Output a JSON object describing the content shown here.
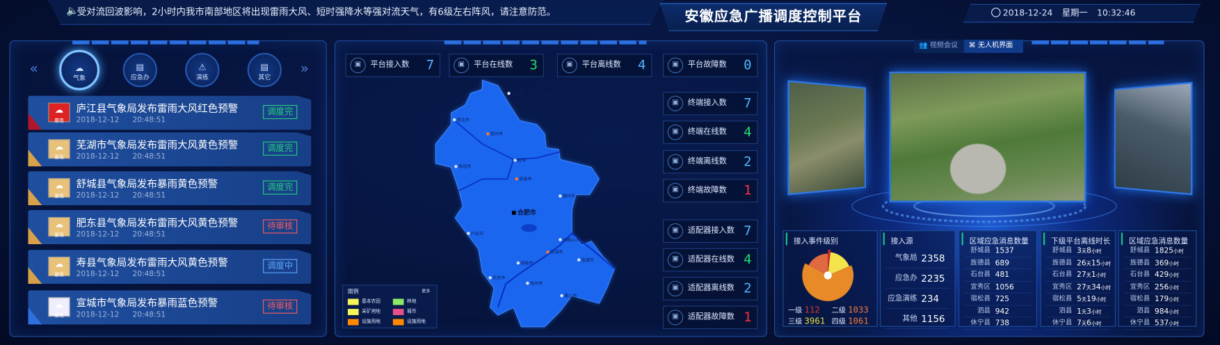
{
  "header": {
    "ticker_icon": "speaker-icon",
    "ticker": "受对流回波影响，2小时内我市南部地区将出现雷雨大风、短时强降水等强对流天气，有6级左右阵风，请注意防范。",
    "title": "安徽应急广播调度控制平台",
    "date": "2018-12-24",
    "weekday": "星期一",
    "time": "10:32:46"
  },
  "left": {
    "categories": [
      {
        "label": "气象",
        "icon": "cloud-icon",
        "active": true
      },
      {
        "label": "应急办",
        "icon": "id-card-icon"
      },
      {
        "label": "演练",
        "icon": "drill-icon"
      },
      {
        "label": "其它",
        "icon": "id-card-icon"
      }
    ],
    "alerts": [
      {
        "title": "庐江县气象局发布雷雨大风红色预警",
        "date": "2018-12-12",
        "time": "20:48:51",
        "status": "调度完",
        "level": "red",
        "badge": "暴雨"
      },
      {
        "title": "芜湖市气象局发布雷雨大风黄色预警",
        "date": "2018-12-12",
        "time": "20:48:51",
        "status": "调度完",
        "level": "yellow",
        "badge": "暴雨"
      },
      {
        "title": "舒城县气象局发布暴雨黄色预警",
        "date": "2018-12-12",
        "time": "20:48:51",
        "status": "调度完",
        "level": "yellow",
        "badge": "暴雨"
      },
      {
        "title": "肥东县气象局发布雷雨大风黄色预警",
        "date": "2018-12-12",
        "time": "20:48:51",
        "status": "待审核",
        "level": "yellow",
        "badge": "暴雨"
      },
      {
        "title": "寿县气象局发布雷雨大风黄色预警",
        "date": "2018-12-12",
        "time": "20:48:51",
        "status": "调度中",
        "level": "yellow",
        "badge": "暴雨"
      },
      {
        "title": "宣城市气象局发布暴雨蓝色预警",
        "date": "2018-12-12",
        "time": "20:48:51",
        "status": "待审核",
        "level": "blue",
        "badge": "暴雨"
      }
    ]
  },
  "colors": {
    "red": "#b0172b",
    "yellow": "#d9a24a",
    "blue": "#2f6fe0",
    "done": "#22d07a",
    "pending": "#ff5a5a",
    "running": "#5fa8ff"
  },
  "middle": {
    "top_stats": [
      {
        "label": "平台接入数",
        "value": "7",
        "color": "#4fb6ff"
      },
      {
        "label": "平台在线数",
        "value": "3",
        "color": "#22e06a"
      },
      {
        "label": "平台离线数",
        "value": "4",
        "color": "#4fb6ff"
      },
      {
        "label": "平台故障数",
        "value": "0",
        "color": "#4fb6ff"
      }
    ],
    "side_stats": [
      {
        "label": "终端接入数",
        "value": "7",
        "color": "#4fb6ff"
      },
      {
        "label": "终端在线数",
        "value": "4",
        "color": "#22e06a"
      },
      {
        "label": "终端离线数",
        "value": "2",
        "color": "#4fb6ff"
      },
      {
        "label": "终端故障数",
        "value": "1",
        "color": "#ff3040"
      },
      {
        "label": "适配器接入数",
        "value": "7",
        "color": "#4fb6ff"
      },
      {
        "label": "适配器在线数",
        "value": "4",
        "color": "#22e06a"
      },
      {
        "label": "适配器离线数",
        "value": "2",
        "color": "#4fb6ff"
      },
      {
        "label": "适配器故障数",
        "value": "1",
        "color": "#ff3040"
      }
    ],
    "map": {
      "capital": "合肥市",
      "cities": [
        "亳州市",
        "淮北市",
        "宿州市",
        "阜阳市",
        "蚌埠",
        "淮南市",
        "滁州市",
        "六安市",
        "马鞍山市",
        "芜湖市",
        "铜陵市",
        "宣城市",
        "安庆市",
        "池州市",
        "黄山市"
      ]
    },
    "legend": {
      "title": "图例",
      "more": "更多",
      "items": [
        {
          "label": "基本农田",
          "color": "#f5f55a"
        },
        {
          "label": "林地",
          "color": "#8ee86a"
        },
        {
          "label": "采矿用地",
          "color": "#f5f55a"
        },
        {
          "label": "城市",
          "color": "#e8508a"
        },
        {
          "label": "设施用地",
          "color": "#ff8a00"
        },
        {
          "label": "设施用地",
          "color": "#ff8a00"
        }
      ]
    }
  },
  "right": {
    "tabs": [
      {
        "label": "视频会议",
        "active": false
      },
      {
        "label": "无人机界面",
        "active": true
      }
    ],
    "event_level": {
      "title": "接入事件级别",
      "levels": [
        {
          "label": "一级",
          "value": 112,
          "color": "#e03030"
        },
        {
          "label": "二级",
          "value": 1033,
          "color": "#f07a3a"
        },
        {
          "label": "三级",
          "value": 3961,
          "color": "#e8e040"
        },
        {
          "label": "四级",
          "value": 1061,
          "color": "#f07a3a"
        }
      ],
      "slice_colors": [
        "#c8282a",
        "#f2e44a",
        "#e88a28",
        "#e06a40"
      ]
    },
    "source": {
      "title": "接入源",
      "rows": [
        {
          "label": "气象局",
          "value": "2358"
        },
        {
          "label": "应急办",
          "value": "2235"
        },
        {
          "label": "应急演练",
          "value": "234"
        },
        {
          "label": "其他",
          "value": "1156"
        }
      ]
    },
    "region_msgs": {
      "title": "区域应急消息数量",
      "rows": [
        {
          "name": "舒城县",
          "value": "1537"
        },
        {
          "name": "旌德县",
          "value": "689"
        },
        {
          "name": "石台县",
          "value": "481"
        },
        {
          "name": "宜秀区",
          "value": "1056"
        },
        {
          "name": "宿松县",
          "value": "725"
        },
        {
          "name": "泗县",
          "value": "942"
        },
        {
          "name": "休宁县",
          "value": "738"
        }
      ]
    },
    "offline": {
      "title": "下级平台离线时长",
      "day_unit": "天",
      "hour_unit": "小时",
      "rows": [
        {
          "name": "舒城县",
          "d": "3",
          "h": "8"
        },
        {
          "name": "旌德县",
          "d": "26",
          "h": "15"
        },
        {
          "name": "石台县",
          "d": "27",
          "h": "1"
        },
        {
          "name": "宜秀区",
          "d": "27",
          "h": "34"
        },
        {
          "name": "宿松县",
          "d": "5",
          "h": "19"
        },
        {
          "name": "泗县",
          "d": "1",
          "h": "3"
        },
        {
          "name": "休宁县",
          "d": "7",
          "h": "6"
        }
      ]
    },
    "region_msgs2": {
      "title": "区域应急消息数量",
      "unit": "小时",
      "rows": [
        {
          "name": "舒城县",
          "value": "1825"
        },
        {
          "name": "旌德县",
          "value": "369"
        },
        {
          "name": "石台县",
          "value": "429"
        },
        {
          "name": "宜秀区",
          "value": "256"
        },
        {
          "name": "宿松县",
          "value": "179"
        },
        {
          "name": "泗县",
          "value": "984"
        },
        {
          "name": "休宁县",
          "value": "537"
        }
      ]
    }
  }
}
